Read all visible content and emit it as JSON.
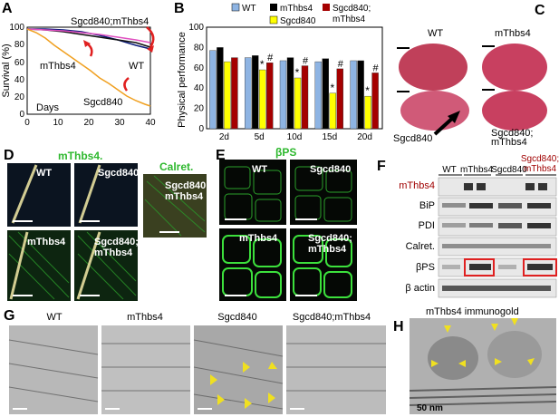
{
  "panels": {
    "A": "A",
    "B": "B",
    "C": "C",
    "D": "D",
    "E": "E",
    "F": "F",
    "G": "G",
    "H": "H"
  },
  "survival": {
    "ylabel": "Survival (%)",
    "xlabel": "Days",
    "xticks": [
      "0",
      "10",
      "20",
      "30",
      "40"
    ],
    "yticks": [
      "0",
      "20",
      "40",
      "60",
      "80",
      "100"
    ],
    "label_top": "Sgcd840;mThbs4",
    "label_wt": "WT",
    "label_mthbs4": "mThbs4",
    "label_sgcd": "Sgcd840"
  },
  "chart_data": {
    "type": "bar",
    "ylabel": "Physical performance",
    "ylim": [
      0,
      100
    ],
    "yticks": [
      "0",
      "20",
      "40",
      "60",
      "80",
      "100"
    ],
    "categories": [
      "2d",
      "5d",
      "10d",
      "15d",
      "20d"
    ],
    "series": [
      {
        "name": "WT",
        "color": "#8eb4e3",
        "values": [
          77,
          70,
          67,
          66,
          67
        ]
      },
      {
        "name": "mThbs4",
        "color": "#000000",
        "values": [
          80,
          72,
          70,
          69,
          67
        ]
      },
      {
        "name": "Sgcd840",
        "color": "#ffff00",
        "values": [
          66,
          58,
          50,
          35,
          32
        ]
      },
      {
        "name": "Sgcd840;mThbs4",
        "color": "#a50000",
        "values": [
          70,
          65,
          62,
          59,
          55
        ]
      }
    ],
    "markers": [
      "#",
      "*",
      "#",
      "*",
      "#",
      "*",
      "#",
      "*",
      "#"
    ],
    "legend": {
      "wt": "WT",
      "mthbs4": "mThbs4",
      "sgcd": "Sgcd840",
      "sgcd_mthbs4_a": "Sgcd840;",
      "sgcd_mthbs4_b": "mThbs4"
    }
  },
  "histo_c": {
    "wt": "WT",
    "mthbs4": "mThbs4",
    "sgcd": "Sgcd840",
    "combo_a": "Sgcd840;",
    "combo_b": "mThbs4"
  },
  "panel_d": {
    "title": "mThbs4.",
    "wt": "WT",
    "sgcd": "Sgcd840",
    "calret": "Calret.",
    "combo_a": "Sgcd840;",
    "combo_b": "mThbs4",
    "mthbs4": "mThbs4",
    "combo2_a": "Sgcd840;",
    "combo2_b": "mThbs4"
  },
  "panel_e": {
    "title": "βPS",
    "wt": "WT",
    "sgcd": "Sgcd840",
    "mthbs4": "mThbs4",
    "combo_a": "Sgcd840;",
    "combo_b": "mThbs4"
  },
  "panel_f": {
    "col_wt": "WT",
    "col_mthbs4": "mThbs4",
    "col_sgcd": "Sgcd840",
    "col_combo_a": "Sgcd840;",
    "col_combo_b": "mThbs4",
    "rows": [
      "mThbs4",
      "BiP",
      "PDI",
      "Calret.",
      "βPS",
      "β actin"
    ]
  },
  "panel_g": {
    "wt": "WT",
    "mthbs4": "mThbs4",
    "sgcd": "Sgcd840",
    "combo": "Sgcd840;mThbs4"
  },
  "panel_h": {
    "title": "mThbs4 immunogold",
    "scale": "50 nm"
  },
  "colors": {
    "wt_line": "#0a1a7a",
    "mthbs4_line": "#111111",
    "sgcd_line": "#f0a020",
    "combo_line": "#e050c0",
    "arrow": "#e02020",
    "red_label": "#a00000"
  }
}
